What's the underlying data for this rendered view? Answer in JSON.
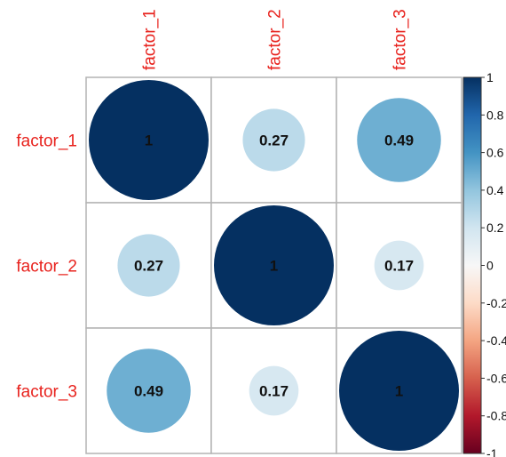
{
  "chart_data": {
    "type": "heatmap",
    "variables": [
      "factor_1",
      "factor_2",
      "factor_3"
    ],
    "matrix": [
      [
        1,
        0.27,
        0.49
      ],
      [
        0.27,
        1,
        0.17
      ],
      [
        0.49,
        0.17,
        1
      ]
    ],
    "value_labels": [
      [
        "1",
        "0.27",
        "0.49"
      ],
      [
        "0.27",
        "1",
        "0.17"
      ],
      [
        "0.49",
        "0.17",
        "1"
      ]
    ],
    "legend": {
      "range": [
        -1,
        1
      ],
      "ticks": [
        "1",
        "0.8",
        "0.6",
        "0.4",
        "0.2",
        "0",
        "-0.2",
        "-0.4",
        "-0.6",
        "-0.8",
        "-1"
      ],
      "placement": "right"
    },
    "colors": {
      "label": "#e8231e",
      "gradient": [
        "#67001f",
        "#b2182b",
        "#d6604d",
        "#f4a582",
        "#fddbc7",
        "#f7f7f7",
        "#d1e5f0",
        "#92c5de",
        "#4393c3",
        "#2166ac",
        "#053061"
      ]
    }
  }
}
